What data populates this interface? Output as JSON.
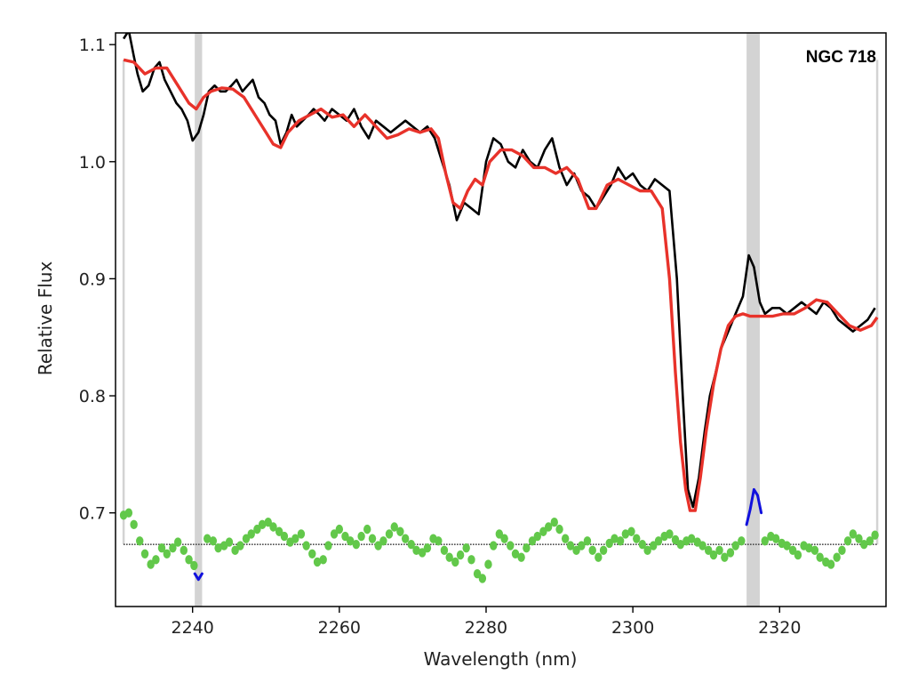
{
  "chart_data": {
    "type": "line",
    "title": "",
    "xlabel": "Wavelength (nm)",
    "ylabel": "Relative Flux",
    "xlim": [
      2229.5,
      2334.5
    ],
    "ylim": [
      0.62,
      1.11
    ],
    "x_ticks": [
      2240,
      2260,
      2280,
      2300,
      2320
    ],
    "y_ticks": [
      0.7,
      0.8,
      0.9,
      1.0,
      1.1
    ],
    "x_tick_labels": [
      "2240",
      "2260",
      "2280",
      "2300",
      "2320"
    ],
    "y_tick_labels": [
      "0.7",
      "0.8",
      "0.9",
      "1.0",
      "1.1"
    ],
    "annotation": "NGC 718",
    "legend": "none",
    "grid": false,
    "colors": {
      "observed": "#000000",
      "model": "#e8322a",
      "residuals": "#62c84a",
      "masked_residuals": "#1010dd",
      "masked_region": "#d3d3d3",
      "zero_line": "#444444"
    },
    "masked_regions": [
      [
        2240.3,
        2241.3
      ],
      [
        2315.5,
        2317.3
      ]
    ],
    "fit_range_markers": [
      2230.6,
      2333.3
    ],
    "residual_zero_level": 0.673,
    "series": [
      {
        "role": "observed",
        "x": [
          2230.6,
          2231.3,
          2232.0,
          2232.5,
          2233.2,
          2234.0,
          2234.8,
          2235.5,
          2236.2,
          2237.0,
          2237.8,
          2238.5,
          2239.3,
          2240.0,
          2240.8,
          2241.5,
          2242.2,
          2243.0,
          2243.8,
          2244.5,
          2245.3,
          2246.0,
          2246.8,
          2247.5,
          2248.2,
          2249.0,
          2249.8,
          2250.5,
          2251.3,
          2252.0,
          2252.8,
          2253.5,
          2254.2,
          2255.0,
          2255.8,
          2256.5,
          2257.3,
          2258.0,
          2259.0,
          2260.0,
          2261.0,
          2262.0,
          2263.0,
          2264.0,
          2265.0,
          2266.0,
          2267.0,
          2268.0,
          2269.0,
          2270.0,
          2271.0,
          2272.0,
          2273.0,
          2274.0,
          2275.0,
          2276.0,
          2277.0,
          2278.0,
          2279.0,
          2280.0,
          2281.0,
          2282.0,
          2283.0,
          2284.0,
          2285.0,
          2286.0,
          2287.0,
          2288.0,
          2289.0,
          2290.0,
          2291.0,
          2292.0,
          2293.0,
          2294.0,
          2295.0,
          2296.0,
          2297.0,
          2298.0,
          2299.0,
          2300.0,
          2301.0,
          2302.0,
          2303.0,
          2304.0,
          2305.0,
          2306.0,
          2306.8,
          2307.5,
          2308.2,
          2309.0,
          2309.8,
          2310.5,
          2311.3,
          2312.0,
          2313.0,
          2314.0,
          2315.0,
          2315.8,
          2316.5,
          2317.3,
          2318.0,
          2319.0,
          2320.0,
          2321.0,
          2322.0,
          2323.0,
          2324.0,
          2325.0,
          2326.0,
          2327.0,
          2328.0,
          2329.0,
          2330.0,
          2331.0,
          2332.0,
          2333.0
        ],
        "y": [
          1.105,
          1.112,
          1.09,
          1.075,
          1.06,
          1.065,
          1.08,
          1.085,
          1.07,
          1.06,
          1.05,
          1.045,
          1.035,
          1.018,
          1.025,
          1.04,
          1.06,
          1.065,
          1.06,
          1.06,
          1.065,
          1.07,
          1.06,
          1.065,
          1.07,
          1.055,
          1.05,
          1.04,
          1.035,
          1.015,
          1.025,
          1.04,
          1.03,
          1.035,
          1.04,
          1.045,
          1.04,
          1.035,
          1.045,
          1.04,
          1.035,
          1.045,
          1.03,
          1.02,
          1.035,
          1.03,
          1.025,
          1.03,
          1.035,
          1.03,
          1.025,
          1.03,
          1.02,
          1.0,
          0.98,
          0.95,
          0.965,
          0.96,
          0.955,
          1.0,
          1.02,
          1.015,
          1.0,
          0.995,
          1.01,
          1.0,
          0.995,
          1.01,
          1.02,
          0.995,
          0.98,
          0.99,
          0.975,
          0.97,
          0.96,
          0.97,
          0.98,
          0.995,
          0.985,
          0.99,
          0.98,
          0.975,
          0.985,
          0.98,
          0.975,
          0.9,
          0.8,
          0.72,
          0.705,
          0.73,
          0.77,
          0.8,
          0.82,
          0.84,
          0.855,
          0.87,
          0.885,
          0.92,
          0.91,
          0.88,
          0.87,
          0.875,
          0.875,
          0.87,
          0.875,
          0.88,
          0.875,
          0.87,
          0.88,
          0.875,
          0.865,
          0.86,
          0.855,
          0.86,
          0.865,
          0.875
        ]
      },
      {
        "role": "model",
        "x": [
          2230.6,
          2232.0,
          2233.5,
          2235.0,
          2236.5,
          2238.0,
          2239.5,
          2240.5,
          2241.5,
          2242.5,
          2244.0,
          2245.5,
          2247.0,
          2248.5,
          2250.0,
          2251.0,
          2252.0,
          2253.0,
          2254.5,
          2256.0,
          2257.5,
          2259.0,
          2260.5,
          2262.0,
          2263.5,
          2265.0,
          2266.5,
          2268.0,
          2269.5,
          2271.0,
          2272.5,
          2273.5,
          2274.5,
          2275.5,
          2276.5,
          2277.5,
          2278.5,
          2279.5,
          2280.5,
          2282.0,
          2283.5,
          2285.0,
          2286.5,
          2288.0,
          2289.5,
          2291.0,
          2292.5,
          2294.0,
          2295.0,
          2296.5,
          2298.0,
          2299.5,
          2301.0,
          2302.5,
          2304.0,
          2305.0,
          2305.8,
          2306.5,
          2307.2,
          2307.8,
          2308.5,
          2309.2,
          2310.0,
          2311.0,
          2312.0,
          2313.0,
          2314.0,
          2315.0,
          2316.0,
          2317.5,
          2319.0,
          2320.5,
          2322.0,
          2323.5,
          2325.0,
          2326.5,
          2328.0,
          2329.5,
          2331.0,
          2332.5,
          2333.3
        ],
        "y": [
          1.087,
          1.085,
          1.075,
          1.08,
          1.08,
          1.065,
          1.05,
          1.045,
          1.055,
          1.06,
          1.063,
          1.062,
          1.055,
          1.04,
          1.025,
          1.015,
          1.012,
          1.025,
          1.035,
          1.04,
          1.045,
          1.038,
          1.04,
          1.03,
          1.04,
          1.03,
          1.02,
          1.023,
          1.028,
          1.025,
          1.028,
          1.02,
          0.99,
          0.965,
          0.96,
          0.975,
          0.985,
          0.98,
          1.0,
          1.01,
          1.01,
          1.005,
          0.995,
          0.995,
          0.99,
          0.995,
          0.985,
          0.96,
          0.96,
          0.98,
          0.985,
          0.98,
          0.975,
          0.975,
          0.96,
          0.9,
          0.82,
          0.76,
          0.72,
          0.702,
          0.702,
          0.73,
          0.77,
          0.81,
          0.84,
          0.86,
          0.868,
          0.87,
          0.868,
          0.868,
          0.868,
          0.87,
          0.87,
          0.875,
          0.882,
          0.88,
          0.87,
          0.86,
          0.856,
          0.86,
          0.867
        ]
      },
      {
        "role": "residuals",
        "x": [
          2230.6,
          2231.3,
          2232.0,
          2232.8,
          2233.5,
          2234.3,
          2235.0,
          2235.8,
          2236.5,
          2237.3,
          2238.0,
          2238.8,
          2239.5,
          2240.2,
          2242.0,
          2242.8,
          2243.5,
          2244.3,
          2245.0,
          2245.8,
          2246.5,
          2247.3,
          2248.0,
          2248.8,
          2249.5,
          2250.3,
          2251.0,
          2251.8,
          2252.5,
          2253.3,
          2254.0,
          2254.8,
          2255.5,
          2256.3,
          2257.0,
          2257.8,
          2258.5,
          2259.3,
          2260.0,
          2260.8,
          2261.5,
          2262.3,
          2263.0,
          2263.8,
          2264.5,
          2265.3,
          2266.0,
          2266.8,
          2267.5,
          2268.3,
          2269.0,
          2269.8,
          2270.5,
          2271.3,
          2272.0,
          2272.8,
          2273.5,
          2274.3,
          2275.0,
          2275.8,
          2276.5,
          2277.3,
          2278.0,
          2278.8,
          2279.5,
          2280.3,
          2281.0,
          2281.8,
          2282.5,
          2283.3,
          2284.0,
          2284.8,
          2285.5,
          2286.3,
          2287.0,
          2287.8,
          2288.5,
          2289.3,
          2290.0,
          2290.8,
          2291.5,
          2292.3,
          2293.0,
          2293.8,
          2294.5,
          2295.3,
          2296.0,
          2296.8,
          2297.5,
          2298.3,
          2299.0,
          2299.8,
          2300.5,
          2301.3,
          2302.0,
          2302.8,
          2303.5,
          2304.3,
          2305.0,
          2305.8,
          2306.5,
          2307.3,
          2308.0,
          2308.8,
          2309.5,
          2310.3,
          2311.0,
          2311.8,
          2312.5,
          2313.3,
          2314.0,
          2314.8,
          2318.0,
          2318.8,
          2319.5,
          2320.3,
          2321.0,
          2321.8,
          2322.5,
          2323.3,
          2324.0,
          2324.8,
          2325.5,
          2326.3,
          2327.0,
          2327.8,
          2328.5,
          2329.3,
          2330.0,
          2330.8,
          2331.5,
          2332.3,
          2333.0
        ],
        "y": [
          0.698,
          0.7,
          0.69,
          0.676,
          0.665,
          0.656,
          0.66,
          0.67,
          0.665,
          0.67,
          0.675,
          0.668,
          0.66,
          0.655,
          0.678,
          0.676,
          0.67,
          0.672,
          0.675,
          0.668,
          0.672,
          0.678,
          0.682,
          0.686,
          0.69,
          0.692,
          0.688,
          0.684,
          0.68,
          0.675,
          0.678,
          0.682,
          0.672,
          0.665,
          0.658,
          0.66,
          0.672,
          0.682,
          0.686,
          0.68,
          0.676,
          0.673,
          0.68,
          0.686,
          0.678,
          0.672,
          0.676,
          0.682,
          0.688,
          0.684,
          0.678,
          0.673,
          0.668,
          0.666,
          0.67,
          0.678,
          0.676,
          0.668,
          0.662,
          0.658,
          0.664,
          0.67,
          0.66,
          0.648,
          0.644,
          0.656,
          0.672,
          0.682,
          0.678,
          0.672,
          0.665,
          0.662,
          0.67,
          0.676,
          0.68,
          0.684,
          0.688,
          0.692,
          0.686,
          0.678,
          0.672,
          0.668,
          0.672,
          0.676,
          0.668,
          0.662,
          0.668,
          0.674,
          0.678,
          0.676,
          0.682,
          0.684,
          0.678,
          0.673,
          0.668,
          0.672,
          0.676,
          0.68,
          0.682,
          0.677,
          0.673,
          0.676,
          0.678,
          0.675,
          0.672,
          0.668,
          0.664,
          0.668,
          0.662,
          0.666,
          0.672,
          0.676,
          0.676,
          0.68,
          0.678,
          0.674,
          0.672,
          0.668,
          0.664,
          0.672,
          0.67,
          0.668,
          0.662,
          0.658,
          0.656,
          0.662,
          0.668,
          0.676,
          0.682,
          0.678,
          0.673,
          0.676,
          0.681
        ]
      },
      {
        "role": "masked_residuals",
        "segments": [
          {
            "x": [
              2240.3,
              2240.8,
              2241.3
            ],
            "y": [
              0.648,
              0.643,
              0.648
            ]
          },
          {
            "x": [
              2315.5,
              2316.0,
              2316.5,
              2317.0,
              2317.5
            ],
            "y": [
              0.69,
              0.703,
              0.72,
              0.715,
              0.7
            ]
          }
        ]
      }
    ]
  }
}
